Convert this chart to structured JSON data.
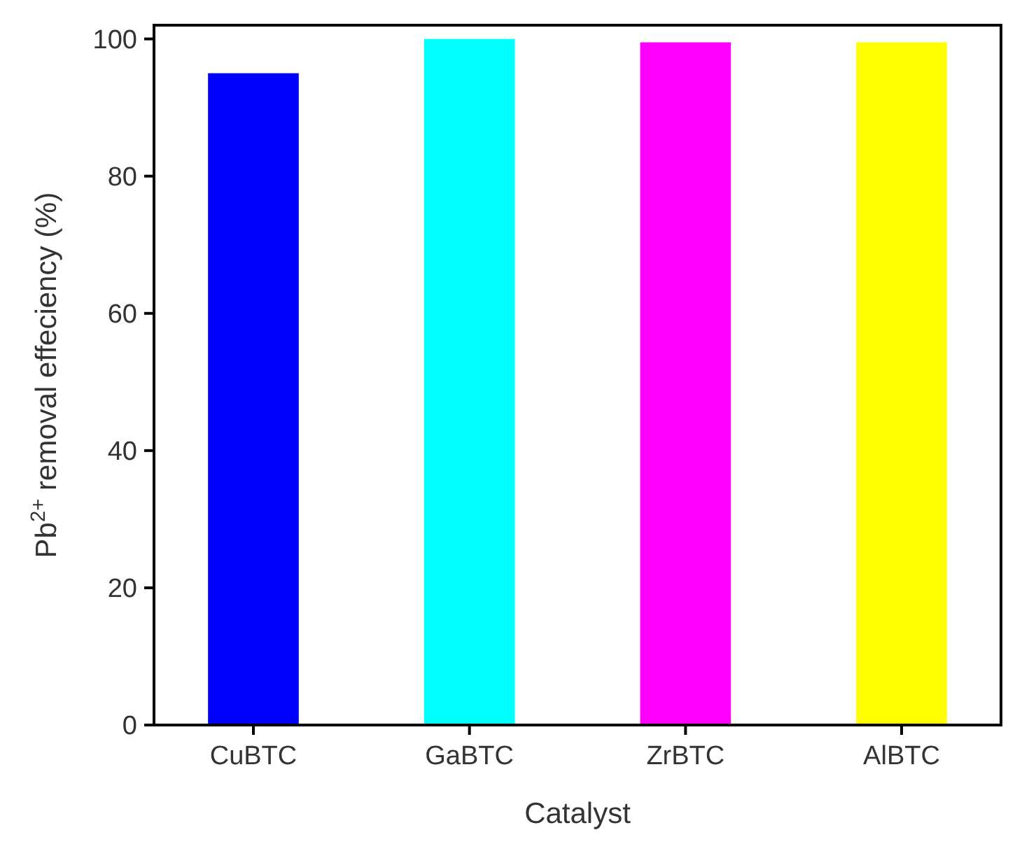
{
  "chart_data": {
    "type": "bar",
    "xlabel": "Catalyst",
    "ylabel": "Pb$^{2+}$ removal effeciency (%)",
    "categories": [
      "CuBTC",
      "GaBTC",
      "ZrBTC",
      "AlBTC"
    ],
    "values": [
      95,
      100,
      99.5,
      99.5
    ],
    "colors": [
      "#0000ff",
      "#00ffff",
      "#ff00ff",
      "#ffff00"
    ],
    "ylim": [
      0,
      102
    ],
    "yticks": [
      0,
      20,
      40,
      60,
      80,
      100
    ],
    "grid": false
  }
}
